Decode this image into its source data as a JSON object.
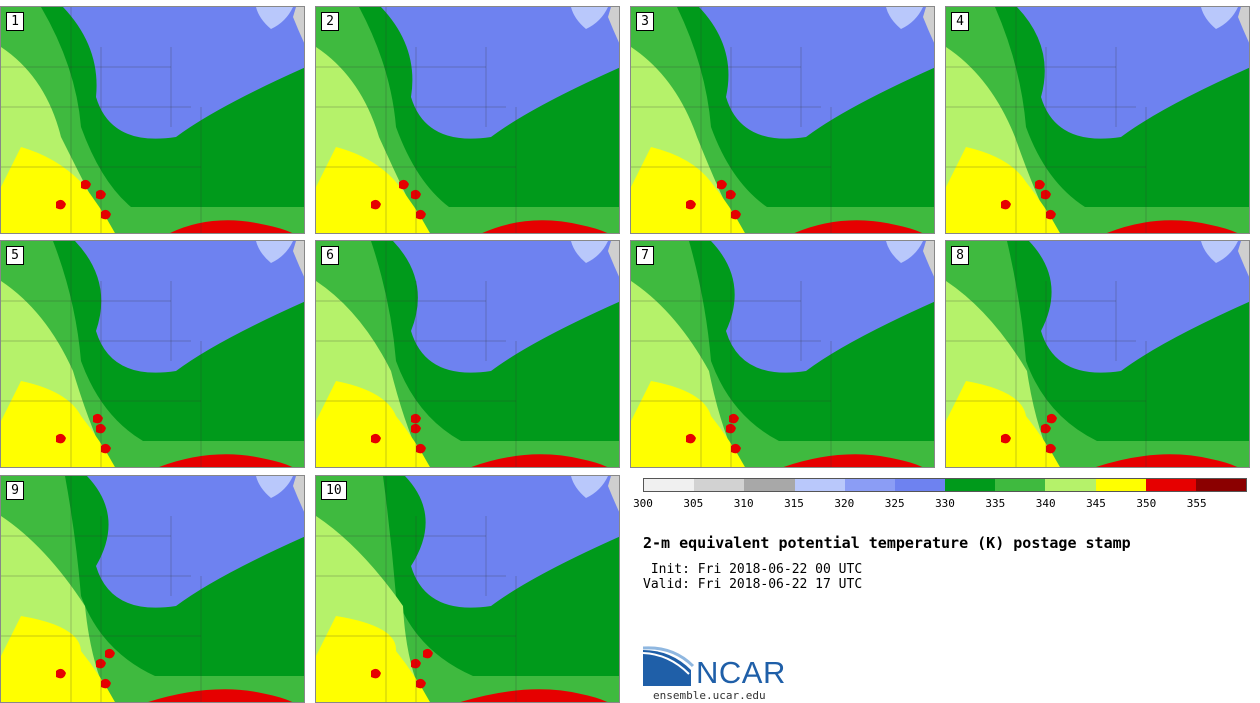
{
  "stamps": [
    {
      "label": "1"
    },
    {
      "label": "2"
    },
    {
      "label": "3"
    },
    {
      "label": "4"
    },
    {
      "label": "5"
    },
    {
      "label": "6"
    },
    {
      "label": "7"
    },
    {
      "label": "8"
    },
    {
      "label": "9"
    },
    {
      "label": "10"
    }
  ],
  "colorbar": {
    "colors": [
      "#f0f0f0",
      "#d2d2d2",
      "#a8a8a8",
      "#b9c8fb",
      "#8b9df5",
      "#6e82f0",
      "#009a1b",
      "#3fba3f",
      "#b5f26a",
      "#ffff00",
      "#e60000",
      "#8b0000"
    ],
    "tick_labels": [
      "300",
      "305",
      "310",
      "315",
      "320",
      "325",
      "330",
      "335",
      "340",
      "345",
      "350",
      "355"
    ]
  },
  "title": "2-m equivalent potential temperature (K) postage stamp",
  "init": " Init: Fri 2018-06-22 00 UTC",
  "valid": "Valid: Fri 2018-06-22 17 UTC",
  "logo": {
    "text": "NCAR",
    "url": "ensemble.ucar.edu"
  }
}
